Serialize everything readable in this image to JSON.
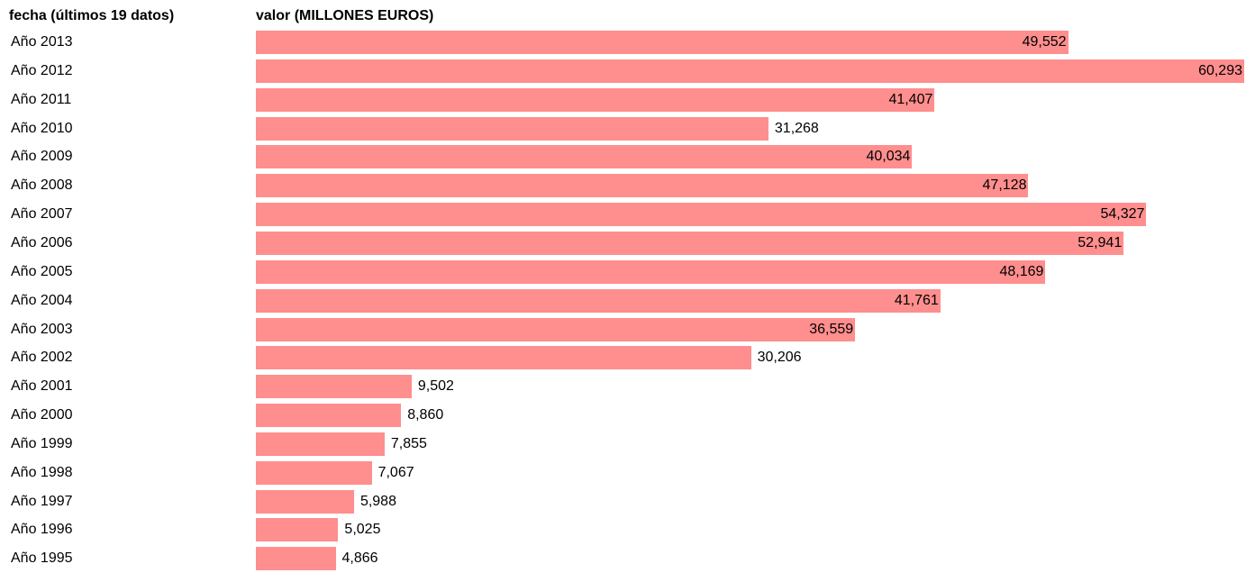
{
  "headers": {
    "category": "fecha (últimos 19 datos)",
    "value": "valor (MILLONES EUROS)"
  },
  "colors": {
    "bar": "#ff8e8e"
  },
  "chart_data": {
    "type": "bar",
    "orientation": "horizontal",
    "categories": [
      "Año 2013",
      "Año 2012",
      "Año 2011",
      "Año 2010",
      "Año 2009",
      "Año 2008",
      "Año 2007",
      "Año 2006",
      "Año 2005",
      "Año 2004",
      "Año 2003",
      "Año 2002",
      "Año 2001",
      "Año 2000",
      "Año 1999",
      "Año 1998",
      "Año 1997",
      "Año 1996",
      "Año 1995"
    ],
    "values": [
      49552,
      60293,
      41407,
      31268,
      40034,
      47128,
      54327,
      52941,
      48169,
      41761,
      36559,
      30206,
      9502,
      8860,
      7855,
      7067,
      5988,
      5025,
      4866
    ],
    "labels": [
      "49,552",
      "60,293",
      "41,407",
      "31,268",
      "40,034",
      "47,128",
      "54,327",
      "52,941",
      "48,169",
      "41,761",
      "36,559",
      "30,206",
      "9,502",
      "8,860",
      "7,855",
      "7,067",
      "5,988",
      "5,025",
      "4,866"
    ],
    "xlim": [
      0,
      60293
    ]
  }
}
